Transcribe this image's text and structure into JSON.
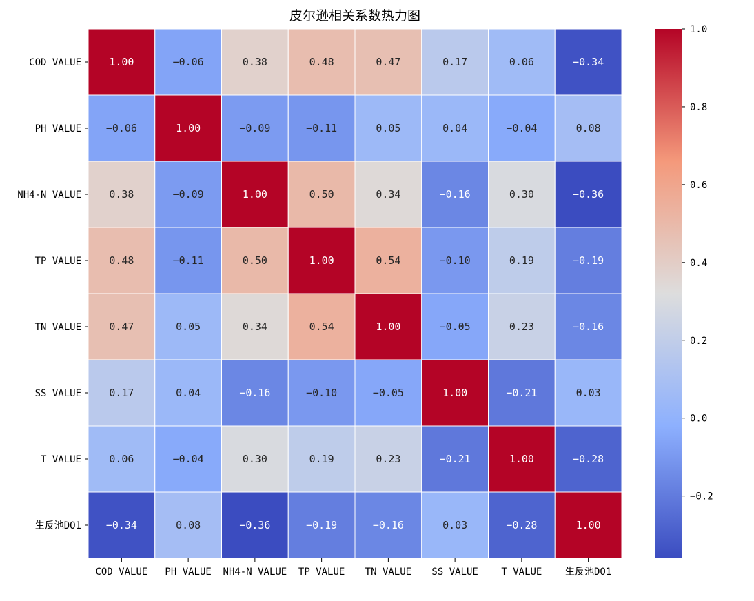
{
  "chart_data": {
    "type": "heatmap",
    "title": "皮尔逊相关系数热力图",
    "x_categories": [
      "COD VALUE",
      "PH VALUE",
      "NH4-N VALUE",
      "TP VALUE",
      "TN VALUE",
      "SS VALUE",
      "T VALUE",
      "生反池DO1"
    ],
    "y_categories": [
      "COD VALUE",
      "PH VALUE",
      "NH4-N VALUE",
      "TP VALUE",
      "TN VALUE",
      "SS VALUE",
      "T VALUE",
      "生反池DO1"
    ],
    "values": [
      [
        1.0,
        -0.06,
        0.38,
        0.48,
        0.47,
        0.17,
        0.06,
        -0.34
      ],
      [
        -0.06,
        1.0,
        -0.09,
        -0.11,
        0.05,
        0.04,
        -0.04,
        0.08
      ],
      [
        0.38,
        -0.09,
        1.0,
        0.5,
        0.34,
        -0.16,
        0.3,
        -0.36
      ],
      [
        0.48,
        -0.11,
        0.5,
        1.0,
        0.54,
        -0.1,
        0.19,
        -0.19
      ],
      [
        0.47,
        0.05,
        0.34,
        0.54,
        1.0,
        -0.05,
        0.23,
        -0.16
      ],
      [
        0.17,
        0.04,
        -0.16,
        -0.1,
        -0.05,
        1.0,
        -0.21,
        0.03
      ],
      [
        0.06,
        -0.04,
        0.3,
        0.19,
        0.23,
        -0.21,
        1.0,
        -0.28
      ],
      [
        -0.34,
        0.08,
        -0.36,
        -0.19,
        -0.16,
        0.03,
        -0.28,
        1.0
      ]
    ],
    "colormap": "coolwarm",
    "value_format": "0.00",
    "vmin": -0.36,
    "vmax": 1.0,
    "colorbar": {
      "ticks": [
        -0.2,
        0.0,
        0.2,
        0.4,
        0.6,
        0.8,
        1.0
      ],
      "tick_labels": [
        "−0.2",
        "0.0",
        "0.2",
        "0.4",
        "0.6",
        "0.8",
        "1.0"
      ],
      "placement": "right"
    },
    "xlabel": "",
    "ylabel": "",
    "grid": false
  }
}
